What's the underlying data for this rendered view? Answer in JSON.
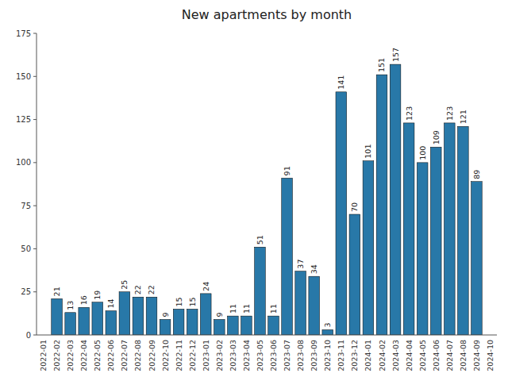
{
  "chart_data": {
    "type": "bar",
    "title": "New apartments by month",
    "categories": [
      "2022-01",
      "2022-02",
      "2022-03",
      "2022-04",
      "2022-05",
      "2022-06",
      "2022-07",
      "2022-08",
      "2022-09",
      "2022-10",
      "2022-11",
      "2022-12",
      "2023-01",
      "2023-02",
      "2023-03",
      "2023-04",
      "2023-05",
      "2023-06",
      "2023-07",
      "2023-08",
      "2023-09",
      "2023-10",
      "2023-11",
      "2023-12",
      "2024-01",
      "2024-02",
      "2024-03",
      "2024-04",
      "2024-05",
      "2024-06",
      "2024-07",
      "2024-08",
      "2024-09",
      "2024-10"
    ],
    "values": [
      0,
      21,
      13,
      16,
      19,
      14,
      25,
      22,
      22,
      9,
      15,
      15,
      24,
      9,
      11,
      11,
      51,
      11,
      91,
      37,
      34,
      3,
      141,
      70,
      101,
      151,
      157,
      123,
      100,
      109,
      123,
      121,
      89,
      0
    ],
    "color": "#2878a8",
    "ylim": [
      0,
      175
    ],
    "yticks": [
      0,
      25,
      50,
      75,
      100,
      125,
      150,
      175
    ],
    "grid": false,
    "data_labels": true
  }
}
